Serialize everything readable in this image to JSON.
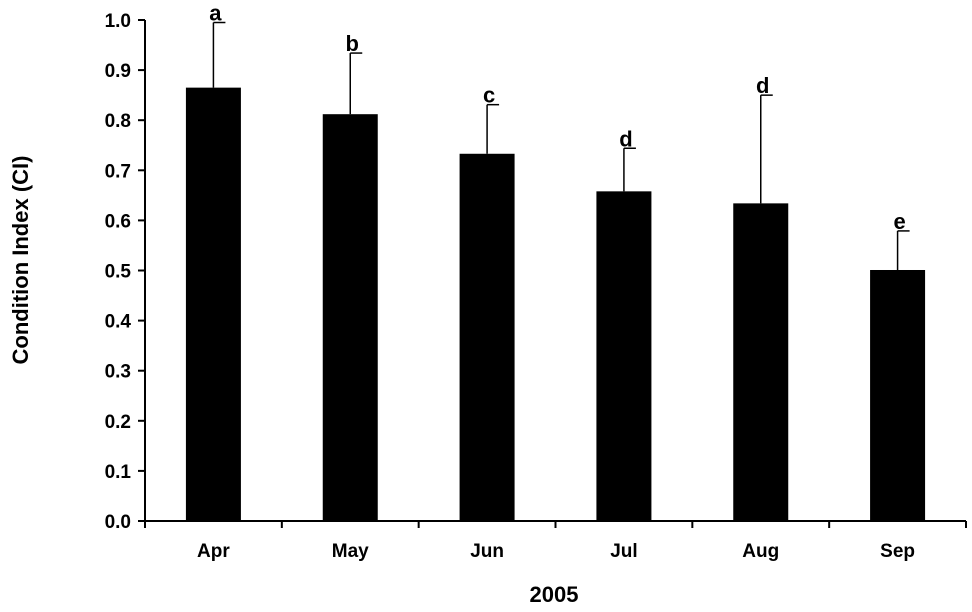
{
  "chart_data": {
    "type": "bar",
    "xlabel": "2005",
    "ylabel": "Condition Index (CI)",
    "ylim": [
      0,
      1.0
    ],
    "yticks": [
      "0.0",
      "0.1",
      "0.2",
      "0.3",
      "0.4",
      "0.5",
      "0.6",
      "0.7",
      "0.8",
      "0.9",
      "1.0"
    ],
    "categories": [
      "Apr",
      "May",
      "Jun",
      "Jul",
      "Aug",
      "Sep"
    ],
    "values": [
      0.865,
      0.812,
      0.733,
      0.658,
      0.634,
      0.501
    ],
    "error_upper": [
      0.13,
      0.122,
      0.098,
      0.086,
      0.216,
      0.078
    ],
    "significance_letters": [
      "a",
      "b",
      "c",
      "d",
      "d",
      "e"
    ],
    "bar_color": "#000000",
    "grid": false,
    "legend": "none"
  }
}
